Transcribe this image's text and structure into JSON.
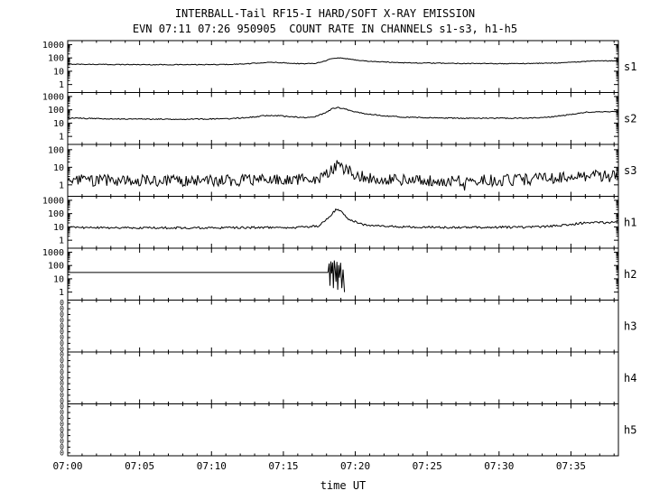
{
  "title": {
    "line1": "INTERBALL-Tail RF15-I HARD/SOFT X-RAY EMISSION",
    "line2": "EVN 07:11 07:26 950905  COUNT RATE IN CHANNELS s1-s3, h1-h5"
  },
  "colors": {
    "foreground": "#000000",
    "background": "#ffffff"
  },
  "x_axis": {
    "label": "time UT",
    "start_minutes": 420,
    "end_minutes": 458.3,
    "major_tick_minutes": 5,
    "minor_tick_minutes": 1,
    "tick_labels": [
      "07:00",
      "07:05",
      "07:10",
      "07:15",
      "07:20",
      "07:25",
      "07:30",
      "07:35"
    ],
    "tick_minutes": [
      420,
      425,
      430,
      435,
      440,
      445,
      450,
      455
    ]
  },
  "chart_data": {
    "type": "line",
    "title": "INTERBALL-Tail RF15-I HARD/SOFT X-RAY EMISSION",
    "subtitle": "EVN 07:11 07:26 950905  COUNT RATE IN CHANNELS s1-s3, h1-h5",
    "xlabel": "time UT",
    "ylabel": "count rate (log scale per channel)",
    "x_range_minutes": [
      420,
      458.3
    ],
    "grid": false,
    "legend_position": "right-edge-channel-labels",
    "panels": [
      {
        "name": "s1",
        "label": "s1",
        "yscale": "log",
        "ytick_values": [
          3,
          2,
          1,
          0
        ],
        "ytick_labels": [
          "1000",
          "100",
          "10",
          "1"
        ],
        "ylog_top": 3.3,
        "ylog_bottom": -0.6,
        "noise_dex": 0.03,
        "points": [
          [
            420,
            34
          ],
          [
            423,
            32
          ],
          [
            426,
            31
          ],
          [
            429,
            31
          ],
          [
            431,
            32
          ],
          [
            432.5,
            36
          ],
          [
            433.5,
            44
          ],
          [
            434.5,
            46
          ],
          [
            435.5,
            40
          ],
          [
            436.5,
            36
          ],
          [
            437.2,
            40
          ],
          [
            437.8,
            55
          ],
          [
            438.3,
            85
          ],
          [
            438.8,
            100
          ],
          [
            439.3,
            92
          ],
          [
            440,
            70
          ],
          [
            441,
            55
          ],
          [
            442.5,
            47
          ],
          [
            444,
            42
          ],
          [
            446,
            40
          ],
          [
            448,
            38
          ],
          [
            450,
            37
          ],
          [
            452,
            38
          ],
          [
            454,
            42
          ],
          [
            455.5,
            50
          ],
          [
            456.5,
            58
          ],
          [
            457.5,
            60
          ],
          [
            458.3,
            62
          ]
        ]
      },
      {
        "name": "s2",
        "label": "s2",
        "yscale": "log",
        "ytick_values": [
          3,
          2,
          1,
          0
        ],
        "ytick_labels": [
          "1000",
          "100",
          "10",
          "1"
        ],
        "ylog_top": 3.3,
        "ylog_bottom": -0.6,
        "noise_dex": 0.04,
        "points": [
          [
            420,
            24
          ],
          [
            423,
            21
          ],
          [
            426,
            20
          ],
          [
            429,
            20
          ],
          [
            431,
            21
          ],
          [
            432.5,
            26
          ],
          [
            433.5,
            35
          ],
          [
            434.5,
            37
          ],
          [
            435.5,
            30
          ],
          [
            436.5,
            26
          ],
          [
            437.3,
            32
          ],
          [
            437.9,
            60
          ],
          [
            438.4,
            120
          ],
          [
            438.8,
            150
          ],
          [
            439.2,
            120
          ],
          [
            440,
            70
          ],
          [
            441,
            45
          ],
          [
            442.5,
            32
          ],
          [
            444,
            27
          ],
          [
            446,
            24
          ],
          [
            448,
            23
          ],
          [
            450,
            23
          ],
          [
            452,
            24
          ],
          [
            453.5,
            28
          ],
          [
            455,
            45
          ],
          [
            456,
            65
          ],
          [
            457,
            75
          ],
          [
            458.3,
            70
          ]
        ]
      },
      {
        "name": "s3",
        "label": "s3",
        "yscale": "log",
        "ytick_values": [
          2,
          1,
          0
        ],
        "ytick_labels": [
          "100",
          "10",
          "1"
        ],
        "ylog_top": 2.3,
        "ylog_bottom": -0.65,
        "noise_dex": 0.33,
        "points": [
          [
            420,
            1.8
          ],
          [
            430,
            1.7
          ],
          [
            435,
            1.9
          ],
          [
            437.5,
            2.2
          ],
          [
            438.2,
            5
          ],
          [
            438.7,
            12
          ],
          [
            439.2,
            8
          ],
          [
            440,
            4
          ],
          [
            441,
            2.5
          ],
          [
            443,
            2
          ],
          [
            445,
            1.8
          ],
          [
            447.4,
            1.8
          ],
          [
            447.55,
            1.8
          ],
          [
            447.6,
            0.25
          ],
          [
            447.65,
            1.8
          ],
          [
            450,
            1.8
          ],
          [
            452,
            2
          ],
          [
            453.5,
            2.5
          ],
          [
            455,
            3
          ],
          [
            456.5,
            3.2
          ],
          [
            458.3,
            3
          ]
        ]
      },
      {
        "name": "h1",
        "label": "h1",
        "yscale": "log",
        "ytick_values": [
          3,
          2,
          1,
          0
        ],
        "ytick_labels": [
          "1000",
          "100",
          "10",
          "1"
        ],
        "ylog_top": 3.3,
        "ylog_bottom": -0.6,
        "noise_dex": 0.08,
        "points": [
          [
            420,
            9
          ],
          [
            425,
            8.5
          ],
          [
            430,
            8.5
          ],
          [
            434,
            9
          ],
          [
            436,
            9
          ],
          [
            437.5,
            12
          ],
          [
            438.2,
            60
          ],
          [
            438.7,
            230
          ],
          [
            439.1,
            120
          ],
          [
            439.6,
            35
          ],
          [
            440.5,
            15
          ],
          [
            442,
            11
          ],
          [
            445,
            9.5
          ],
          [
            448,
            9
          ],
          [
            451,
            9.5
          ],
          [
            453,
            10
          ],
          [
            454.5,
            13
          ],
          [
            455.5,
            18
          ],
          [
            456.5,
            22
          ],
          [
            457.5,
            20
          ],
          [
            458.3,
            24
          ]
        ]
      },
      {
        "name": "h2",
        "label": "h2",
        "yscale": "log",
        "ytick_values": [
          3,
          2,
          1,
          0
        ],
        "ytick_labels": [
          "1000",
          "100",
          "10",
          "1"
        ],
        "ylog_top": 3.3,
        "ylog_bottom": -0.6,
        "noise_dex": 0,
        "points": [
          [
            420,
            30
          ],
          [
            438.1,
            30
          ],
          [
            438.18,
            140
          ],
          [
            438.24,
            3
          ],
          [
            438.3,
            200
          ],
          [
            438.36,
            25
          ],
          [
            438.42,
            170
          ],
          [
            438.48,
            2
          ],
          [
            438.54,
            240
          ],
          [
            438.6,
            60
          ],
          [
            438.66,
            6
          ],
          [
            438.72,
            190
          ],
          [
            438.78,
            1.5
          ],
          [
            438.84,
            110
          ],
          [
            438.9,
            12
          ],
          [
            438.98,
            160
          ],
          [
            439.06,
            2
          ],
          [
            439.15,
            50
          ],
          [
            439.25,
            1
          ],
          [
            439.3,
            null
          ]
        ]
      },
      {
        "name": "h3",
        "label": "h3",
        "yscale": "none",
        "ytick_values": [],
        "ytick_labels": [
          "0",
          "0",
          "0",
          "0",
          "0",
          "0",
          "0",
          "0",
          "0"
        ],
        "ylog_top": 0,
        "ylog_bottom": 0,
        "noise_dex": 0,
        "points": []
      },
      {
        "name": "h4",
        "label": "h4",
        "yscale": "none",
        "ytick_values": [],
        "ytick_labels": [
          "0",
          "0",
          "0",
          "0",
          "0",
          "0",
          "0",
          "0",
          "0"
        ],
        "ylog_top": 0,
        "ylog_bottom": 0,
        "noise_dex": 0,
        "points": []
      },
      {
        "name": "h5",
        "label": "h5",
        "yscale": "none",
        "ytick_values": [],
        "ytick_labels": [
          "0",
          "0",
          "0",
          "0",
          "0",
          "0",
          "0",
          "0",
          "0"
        ],
        "ylog_top": 0,
        "ylog_bottom": 0,
        "noise_dex": 0,
        "points": []
      }
    ]
  }
}
